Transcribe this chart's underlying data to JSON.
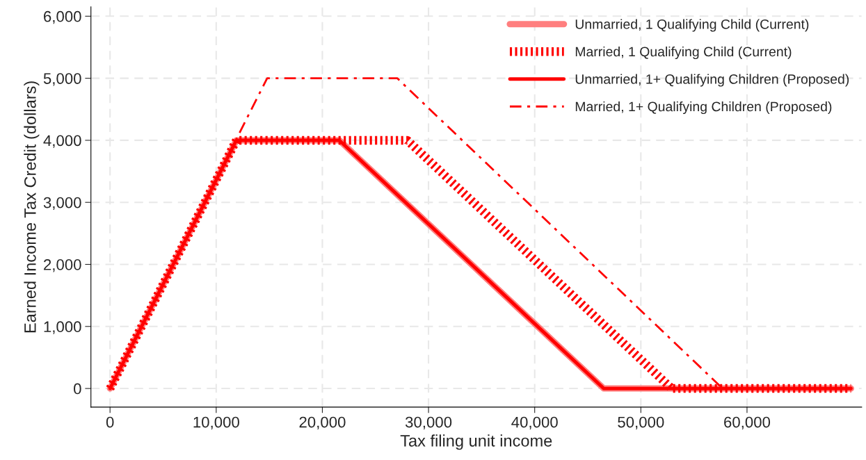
{
  "chart_data": {
    "type": "line",
    "xlabel": "Tax filing unit income",
    "ylabel": "Earned Income Tax Credit (dollars)",
    "series": [
      {
        "name": "Unmarried, 1 Qualifying Child (Current)",
        "color": "#ff7f7f",
        "line_style": "solid",
        "x": [
          0,
          11900,
          21600,
          46500,
          69800
        ],
        "values": [
          0,
          4000,
          4000,
          0,
          0
        ]
      },
      {
        "name": "Married, 1 Qualifying Child (Current)",
        "color": "#ff0000",
        "line_style": "dotted",
        "x": [
          0,
          11900,
          28000,
          52900,
          69800
        ],
        "values": [
          0,
          4000,
          4000,
          0,
          0
        ]
      },
      {
        "name": "Unmarried, 1+ Qualifying Children (Proposed)",
        "color": "#ff0000",
        "line_style": "solid",
        "x": [
          0,
          11900,
          21600,
          46500,
          69800
        ],
        "values": [
          0,
          4000,
          4000,
          0,
          0
        ]
      },
      {
        "name": "Married, 1+ Qualifying Children (Proposed)",
        "color": "#ff0000",
        "line_style": "dashdot",
        "x": [
          0,
          14800,
          27050,
          57700
        ],
        "values": [
          0,
          5000,
          5000,
          0
        ]
      }
    ],
    "xlim": [
      -1800,
      70800
    ],
    "ylim": [
      -300,
      6150
    ],
    "xticks": [
      {
        "value": 0,
        "label": "0"
      },
      {
        "value": 10000,
        "label": "10,000"
      },
      {
        "value": 20000,
        "label": "20,000"
      },
      {
        "value": 30000,
        "label": "30,000"
      },
      {
        "value": 40000,
        "label": "40,000"
      },
      {
        "value": 50000,
        "label": "50,000"
      },
      {
        "value": 60000,
        "label": "60,000"
      }
    ],
    "yticks": [
      {
        "value": 0,
        "label": "0"
      },
      {
        "value": 1000,
        "label": "1,000"
      },
      {
        "value": 2000,
        "label": "2,000"
      },
      {
        "value": 3000,
        "label": "3,000"
      },
      {
        "value": 4000,
        "label": "4,000"
      },
      {
        "value": 5000,
        "label": "5,000"
      },
      {
        "value": 6000,
        "label": "6,000"
      }
    ],
    "grid": true,
    "legend": "top right"
  }
}
